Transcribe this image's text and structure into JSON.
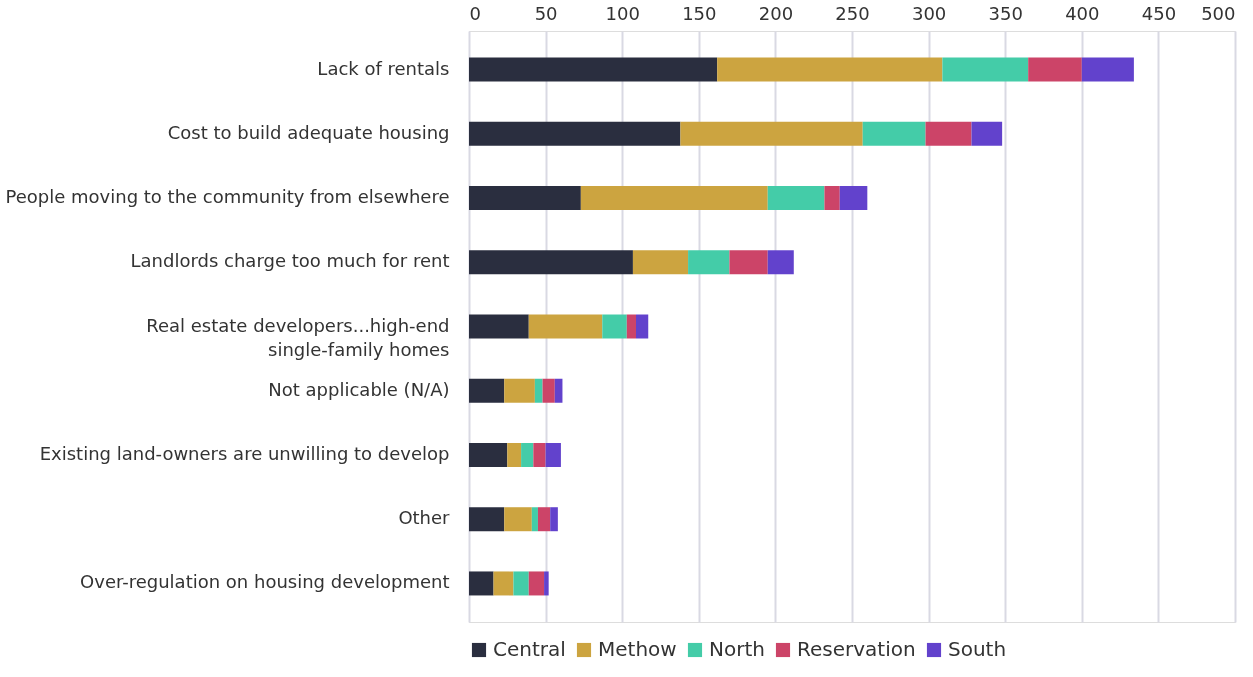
{
  "chart_data": {
    "type": "bar",
    "orientation": "horizontal",
    "stacked": true,
    "categories": [
      "Lack of rentals",
      "Cost to build adequate housing",
      "People moving to the community from elsewhere",
      "Landlords charge too much for rent",
      "Real estate developers...high-end single-family homes",
      "Not applicable (N/A)",
      "Existing land-owners are unwilling to develop",
      "Other",
      "Over-regulation on housing development"
    ],
    "series": [
      {
        "name": "Central",
        "color": "#2a2e3f",
        "values": [
          162,
          138,
          73,
          107,
          39,
          23,
          25,
          23,
          16
        ]
      },
      {
        "name": "Methow",
        "color": "#cca440",
        "values": [
          147,
          119,
          122,
          36,
          48,
          20,
          9,
          18,
          13
        ]
      },
      {
        "name": "North",
        "color": "#44cca8",
        "values": [
          56,
          41,
          37,
          27,
          16,
          5,
          8,
          4,
          10
        ]
      },
      {
        "name": "Reservation",
        "color": "#cc4468",
        "values": [
          35,
          30,
          10,
          25,
          6,
          8,
          8,
          8,
          10
        ]
      },
      {
        "name": "South",
        "color": "#6242cc",
        "values": [
          34,
          20,
          18,
          17,
          8,
          5,
          10,
          5,
          3
        ]
      }
    ],
    "xlim": [
      0,
      500
    ],
    "xticks": [
      0,
      50,
      100,
      150,
      200,
      250,
      300,
      350,
      400,
      450,
      500
    ],
    "grid": "x",
    "legend": "bottom"
  }
}
